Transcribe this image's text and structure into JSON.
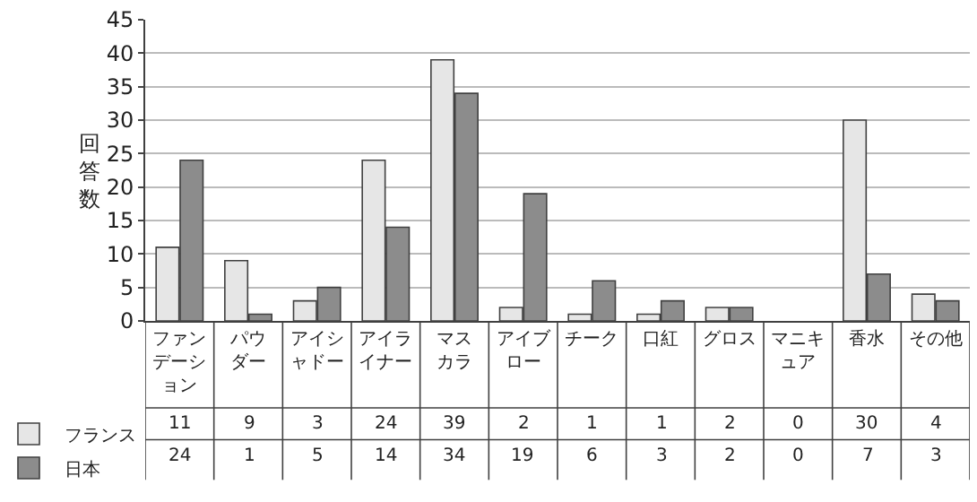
{
  "chart_data": {
    "type": "bar",
    "ylabel": "回答数",
    "categories": [
      "ファンデーション",
      "パウダー",
      "アイシャドー",
      "アイライナー",
      "マスカラ",
      "アイブロー",
      "チーク",
      "口紅",
      "グロス",
      "マニキュア",
      "香水",
      "その他"
    ],
    "series": [
      {
        "name": "フランス",
        "color": "#e6e6e6",
        "values": [
          11,
          9,
          3,
          24,
          39,
          2,
          1,
          1,
          2,
          0,
          30,
          4
        ]
      },
      {
        "name": "日本",
        "color": "#8c8c8c",
        "values": [
          24,
          1,
          5,
          14,
          34,
          19,
          6,
          3,
          2,
          0,
          7,
          3
        ]
      }
    ],
    "ylim": [
      0,
      45
    ],
    "yticks": [
      0,
      5,
      10,
      15,
      20,
      25,
      30,
      35,
      40,
      45
    ],
    "grid": "y",
    "legend": "bottom left",
    "data_labels": true
  }
}
